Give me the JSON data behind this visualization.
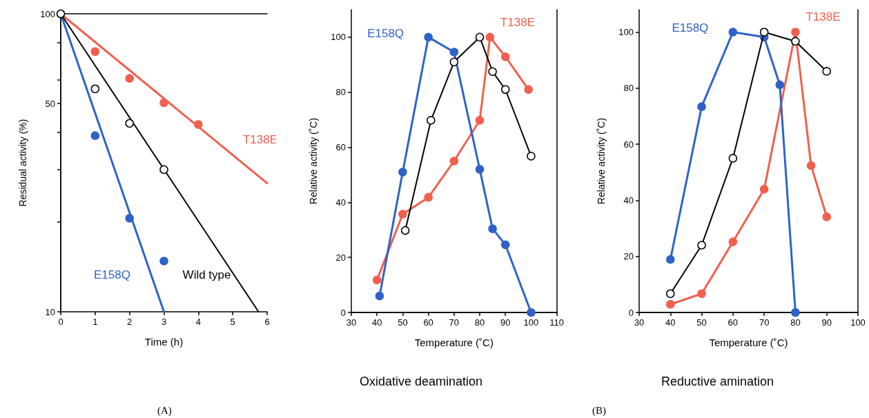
{
  "chart_data": [
    {
      "type": "scatter",
      "xlabel": "Time (h)",
      "ylabel": "Residual activity (%)",
      "log": "y",
      "marker": "circle",
      "xlim": [
        0,
        6
      ],
      "xticks": [
        0,
        1,
        2,
        3,
        4,
        5,
        6
      ],
      "ylim": [
        10,
        100
      ],
      "yticks": [
        10,
        {
          "value": 20,
          "label": null
        },
        {
          "value": 30,
          "label": null
        },
        {
          "value": 40,
          "label": null
        },
        50,
        {
          "value": 60,
          "label": null
        },
        {
          "value": 80,
          "label": null
        },
        100
      ],
      "annotations": [
        "(A)"
      ],
      "series": [
        {
          "type": "line",
          "name": "T138E",
          "color": "#f0604e",
          "marker": "none",
          "x": [
            0,
            6
          ],
          "values": [
            100,
            27
          ]
        },
        {
          "color": "#f0604e",
          "x": [
            1,
            2,
            3,
            4
          ],
          "values": [
            74.7,
            60.7,
            50.3,
            42.5
          ]
        },
        {
          "type": "line",
          "name": "Wild type",
          "color": "#000000",
          "marker": "none",
          "x": [
            0,
            5.75
          ],
          "values": [
            100,
            10
          ]
        },
        {
          "color": "#000000",
          "x": [
            0,
            1,
            2,
            3
          ],
          "values": [
            100,
            56,
            42.9,
            30
          ]
        },
        {
          "type": "line",
          "name": "E158Q",
          "color": "#2f62c8",
          "marker": "none",
          "x": [
            0,
            3
          ],
          "values": [
            100,
            10
          ]
        },
        {
          "color": "#2f62c8",
          "x": [
            1,
            2,
            3
          ],
          "values": [
            39,
            20.6,
            14.8
          ]
        }
      ]
    },
    {
      "type": "line",
      "title": "Oxidative deamination",
      "xlabel": "Temperature (˚C)",
      "ylabel": "Relative activity (˚C)",
      "marker": "circle",
      "xlim": [
        30,
        110
      ],
      "xticks": [
        30,
        40,
        50,
        60,
        70,
        80,
        90,
        100,
        110
      ],
      "ylim": [
        0,
        110
      ],
      "yticks": [
        0,
        20,
        40,
        60,
        80,
        100
      ],
      "series": [
        {
          "color": "#000000",
          "x": [
            51,
            61,
            70,
            80,
            85,
            90,
            100
          ],
          "values": [
            29.8,
            69.8,
            91,
            100,
            87.5,
            81,
            56.8
          ]
        },
        {
          "name": "T138E",
          "color": "#f0604e",
          "x": [
            40,
            50,
            60,
            70,
            80,
            84,
            90,
            99
          ],
          "values": [
            11.8,
            35.7,
            41.8,
            55,
            69.8,
            100,
            92.9,
            81
          ]
        },
        {
          "name": "E158Q",
          "color": "#2f62c8",
          "x": [
            41,
            50,
            60,
            70,
            80,
            85,
            90,
            100
          ],
          "values": [
            6,
            51,
            100,
            94.6,
            52,
            30.4,
            24.6,
            0
          ]
        }
      ]
    },
    {
      "type": "line",
      "title": "Reductive amination",
      "xlabel": "Temperature (˚C)",
      "ylabel": "Relative activity (˚C)",
      "marker": "circle",
      "xlim": [
        30,
        100
      ],
      "xticks": [
        30,
        40,
        50,
        60,
        70,
        80,
        90,
        100
      ],
      "ylim": [
        0,
        108
      ],
      "yticks": [
        0,
        20,
        40,
        60,
        80,
        100
      ],
      "annotations": [
        "(B)"
      ],
      "series": [
        {
          "color": "#000000",
          "x": [
            40,
            50,
            60,
            70,
            80,
            90
          ],
          "values": [
            6.7,
            24,
            55,
            100,
            96.7,
            86
          ]
        },
        {
          "name": "T138E",
          "color": "#f0604e",
          "x": [
            40,
            50,
            60,
            70,
            80,
            85,
            90
          ],
          "values": [
            2.9,
            6.7,
            25.2,
            44,
            100,
            52.4,
            34.1
          ]
        },
        {
          "name": "E158Q",
          "color": "#2f62c8",
          "x": [
            40,
            50,
            60,
            70,
            75,
            80
          ],
          "values": [
            18.9,
            73.4,
            100,
            98.2,
            81.2,
            0
          ]
        }
      ]
    }
  ]
}
